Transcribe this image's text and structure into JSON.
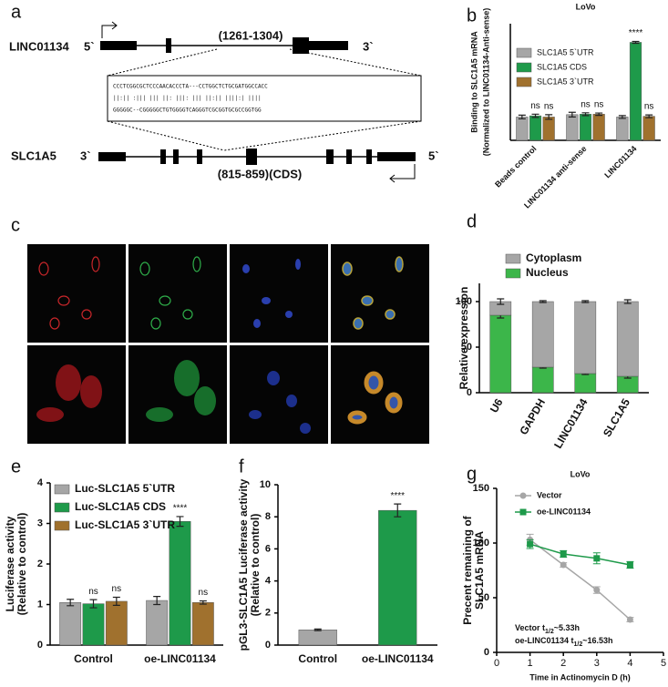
{
  "panel_labels": [
    "a",
    "b",
    "c",
    "d",
    "e",
    "f",
    "g"
  ],
  "diagram": {
    "gene1": "LINC01134",
    "gene1_5": "5`",
    "gene1_3": "3`",
    "site1": "(1261-1304)",
    "alignment": [
      "CCCTCGGCGCTCCCAACACCCTA---CCTGGCTCTGCGATGGCCACC",
      "||:||  :|||  ||| ||:   |||:  |||  ||:||  ||||:| ||||",
      "GGGGGC--CGGGGGCTGTGGGGTCAGGGTCGCGGTGCGCCGGTGG"
    ],
    "gene2": "SLC1A5",
    "gene2_3": "3`",
    "gene2_5": "5`",
    "site2": "(815-859)(CDS)"
  },
  "chart_data": [
    {
      "type": "bar",
      "title": "LoVo",
      "ylabel": [
        "Binding to SLC1A5 mRNA",
        "(Normalized to LINC01134-Anti-sense)"
      ],
      "categories": [
        "Beads control",
        "LINC01134 anti-sense",
        "LINC01134"
      ],
      "series": [
        {
          "name": "SLC1A5 5`UTR",
          "color": "#a6a6a6",
          "values": [
            1.0,
            1.1,
            1.0
          ],
          "errors": [
            0.08,
            0.1,
            0.06
          ]
        },
        {
          "name": "SLC1A5 CDS",
          "color": "#1e9a4a",
          "values": [
            1.05,
            1.12,
            4.2
          ],
          "errors": [
            0.07,
            0.06,
            0.04
          ],
          "significance": [
            "ns",
            "ns",
            "****"
          ]
        },
        {
          "name": "SLC1A5 3`UTR",
          "color": "#a0712e",
          "values": [
            1.0,
            1.12,
            1.03
          ],
          "errors": [
            0.1,
            0.05,
            0.06
          ],
          "significance": [
            "ns",
            "ns",
            "ns"
          ]
        }
      ],
      "ylim": [
        0,
        5
      ]
    },
    {
      "type": "bar",
      "stacked": true,
      "ylabel": [
        "Relative expression"
      ],
      "categories": [
        "U6",
        "GAPDH",
        "LINC01134",
        "SLC1A5"
      ],
      "series": [
        {
          "name": "Nucleus",
          "color": "#3cb64a",
          "values": [
            85,
            28,
            21,
            18
          ],
          "errors": [
            3,
            1,
            1,
            2
          ]
        },
        {
          "name": "Cytoplasm",
          "color": "#a6a6a6",
          "values": [
            15,
            72,
            79,
            82
          ],
          "errors": [
            3,
            1,
            1,
            2
          ]
        }
      ],
      "ylim": [
        0,
        120
      ],
      "yticks": [
        0,
        50,
        100
      ]
    },
    {
      "type": "bar",
      "ylabel": [
        "Luciferase activity",
        "(Relative to control)"
      ],
      "categories": [
        "Control",
        "oe-LINC01134"
      ],
      "series": [
        {
          "name": "Luc-SLC1A5 5`UTR",
          "color": "#a6a6a6",
          "values": [
            1.05,
            1.1
          ],
          "errors": [
            0.08,
            0.1
          ]
        },
        {
          "name": "Luc-SLC1A5 CDS",
          "color": "#1e9a4a",
          "values": [
            1.02,
            3.05
          ],
          "errors": [
            0.1,
            0.12
          ],
          "significance": [
            "ns",
            "****"
          ]
        },
        {
          "name": "Luc-SLC1A5 3`UTR",
          "color": "#a0712e",
          "values": [
            1.08,
            1.05
          ],
          "errors": [
            0.1,
            0.04
          ],
          "significance": [
            "ns",
            "ns"
          ]
        }
      ],
      "ylim": [
        0,
        4
      ],
      "yticks": [
        0,
        1,
        2,
        3,
        4
      ]
    },
    {
      "type": "bar",
      "ylabel": [
        "pGL3-SLC1A5 Luciferase activity",
        "(Relative to control)"
      ],
      "categories": [
        "Control",
        "oe-LINC01134"
      ],
      "values": [
        0.95,
        8.4
      ],
      "colors": [
        "#a6a6a6",
        "#1e9a4a"
      ],
      "errors": [
        0.05,
        0.4
      ],
      "significance": [
        null,
        "****"
      ],
      "ylim": [
        0,
        10
      ],
      "yticks": [
        0,
        2,
        4,
        6,
        8,
        10
      ]
    },
    {
      "type": "line",
      "title": "LoVo",
      "ylabel": [
        "Precent remaining of",
        "SLC1A5 mRNA"
      ],
      "xlabel": "Time in Actinomycin D (h)",
      "x": [
        1,
        2,
        3,
        4
      ],
      "series": [
        {
          "name": "Vector",
          "color": "#a6a6a6",
          "marker": "circle",
          "values": [
            103,
            80,
            57,
            30
          ],
          "errors": [
            5,
            2,
            3,
            2
          ]
        },
        {
          "name": "oe-LINC01134",
          "color": "#1e9a4a",
          "marker": "square",
          "values": [
            99,
            90,
            86,
            80
          ],
          "errors": [
            4,
            3,
            5,
            3
          ]
        }
      ],
      "xlim": [
        0,
        5
      ],
      "xticks": [
        0,
        1,
        2,
        3,
        4,
        5
      ],
      "ylim": [
        0,
        150
      ],
      "yticks": [
        0,
        50,
        100,
        150
      ],
      "annotations": [
        [
          "Vector t",
          "1/2",
          "~5.33h"
        ],
        [
          "oe-LINC01134 t",
          "1/2",
          "~16.53h"
        ]
      ]
    }
  ]
}
